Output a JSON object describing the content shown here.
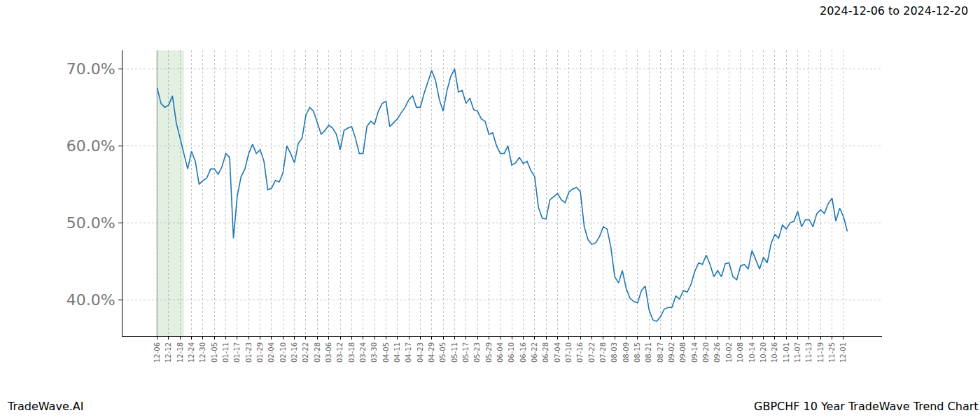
{
  "chart_data": {
    "type": "line",
    "title": "2024-12-06 to 2024-12-20",
    "annotations": [
      "TradeWave.AI",
      "GBPCHF 10 Year TradeWave Trend Chart"
    ],
    "highlight": [
      "12-06",
      "12-20"
    ],
    "color": "#1f77b4",
    "grid": true,
    "ylim": [
      35.3,
      72.4
    ],
    "yticks": [
      {
        "value": 40,
        "label": "40.0%"
      },
      {
        "value": 50,
        "label": "50.0%"
      },
      {
        "value": 60,
        "label": "60.0%"
      },
      {
        "value": 70,
        "label": "70.0%"
      }
    ],
    "categories": [
      "12-06",
      null,
      null,
      "12-12",
      null,
      null,
      "12-18",
      null,
      null,
      "12-24",
      null,
      null,
      "12-30",
      null,
      null,
      "01-05",
      null,
      null,
      "01-11",
      null,
      null,
      "01-17",
      null,
      null,
      "01-23",
      null,
      null,
      "01-29",
      null,
      null,
      "02-04",
      null,
      null,
      "02-10",
      null,
      null,
      "02-16",
      null,
      null,
      "02-22",
      null,
      null,
      "02-28",
      null,
      null,
      "03-06",
      null,
      null,
      "03-12",
      null,
      null,
      "03-18",
      null,
      null,
      "03-24",
      null,
      null,
      "03-30",
      null,
      null,
      "04-05",
      null,
      null,
      "04-11",
      null,
      null,
      "04-17",
      null,
      null,
      "04-23",
      null,
      null,
      "04-29",
      null,
      null,
      "05-05",
      null,
      null,
      "05-11",
      null,
      null,
      "05-17",
      null,
      null,
      "05-23",
      null,
      null,
      "05-29",
      null,
      null,
      "06-04",
      null,
      null,
      "06-10",
      null,
      null,
      "06-16",
      null,
      null,
      "06-22",
      null,
      null,
      "06-28",
      null,
      null,
      "07-04",
      null,
      null,
      "07-10",
      null,
      null,
      "07-16",
      null,
      null,
      "07-22",
      null,
      null,
      "07-28",
      null,
      null,
      "08-03",
      null,
      null,
      "08-09",
      null,
      null,
      "08-15",
      null,
      null,
      "08-21",
      null,
      null,
      "08-27",
      null,
      null,
      "09-02",
      null,
      null,
      "09-08",
      null,
      null,
      "09-14",
      null,
      null,
      "09-20",
      null,
      null,
      "09-26",
      null,
      null,
      "10-02",
      null,
      null,
      "10-08",
      null,
      null,
      "10-14",
      null,
      null,
      "10-20",
      null,
      null,
      "10-26",
      null,
      null,
      "11-01",
      null,
      null,
      "11-07",
      null,
      null,
      "11-13",
      null,
      null,
      "11-19",
      null,
      null,
      "11-25",
      null,
      null,
      "12-01",
      null
    ],
    "values": [
      67.5,
      65.5,
      65.0,
      65.3,
      66.5,
      63.0,
      61.0,
      59.0,
      57.0,
      59.3,
      58.0,
      55.0,
      55.5,
      55.8,
      57.0,
      57.0,
      56.3,
      57.3,
      59.0,
      58.5,
      48.0,
      53.5,
      56.0,
      57.0,
      59.0,
      60.2,
      59.0,
      59.5,
      58.0,
      54.3,
      54.5,
      55.5,
      55.3,
      56.5,
      60.0,
      59.0,
      57.8,
      60.3,
      61.0,
      64.0,
      65.0,
      64.5,
      63.0,
      61.5,
      62.0,
      62.7,
      62.3,
      61.5,
      59.5,
      62.0,
      62.3,
      62.5,
      61.0,
      59.0,
      59.0,
      62.5,
      63.2,
      62.8,
      64.5,
      65.5,
      65.8,
      62.5,
      63.0,
      63.5,
      64.3,
      65.0,
      66.0,
      66.5,
      65.0,
      65.0,
      66.8,
      68.3,
      69.8,
      68.5,
      66.0,
      64.5,
      67.2,
      69.0,
      70.0,
      67.0,
      67.2,
      65.5,
      66.2,
      64.7,
      64.5,
      63.5,
      63.2,
      61.5,
      61.7,
      60.0,
      59.0,
      59.0,
      60.0,
      57.5,
      57.8,
      58.5,
      57.7,
      58.0,
      56.8,
      56.0,
      52.0,
      50.6,
      50.5,
      53.0,
      53.4,
      53.8,
      53.0,
      52.6,
      54.0,
      54.4,
      54.6,
      54.0,
      49.5,
      47.8,
      47.2,
      47.4,
      48.2,
      49.5,
      49.2,
      46.8,
      43.0,
      42.2,
      43.8,
      41.5,
      40.2,
      39.8,
      39.6,
      41.2,
      41.8,
      38.7,
      37.4,
      37.2,
      37.8,
      38.8,
      39.0,
      39.0,
      40.5,
      40.1,
      41.2,
      41.0,
      42.0,
      43.7,
      44.8,
      44.6,
      45.8,
      44.6,
      43.0,
      43.8,
      43.0,
      44.7,
      44.8,
      43.0,
      42.6,
      44.4,
      44.6,
      44.0,
      46.4,
      45.2,
      44.0,
      45.5,
      44.8,
      47.3,
      48.5,
      48.0,
      49.7,
      49.2,
      50.0,
      50.2,
      51.5,
      49.5,
      50.4,
      50.4,
      49.5,
      51.2,
      51.7,
      51.2,
      52.5,
      53.2,
      50.2,
      51.9,
      50.8,
      48.9
    ]
  }
}
